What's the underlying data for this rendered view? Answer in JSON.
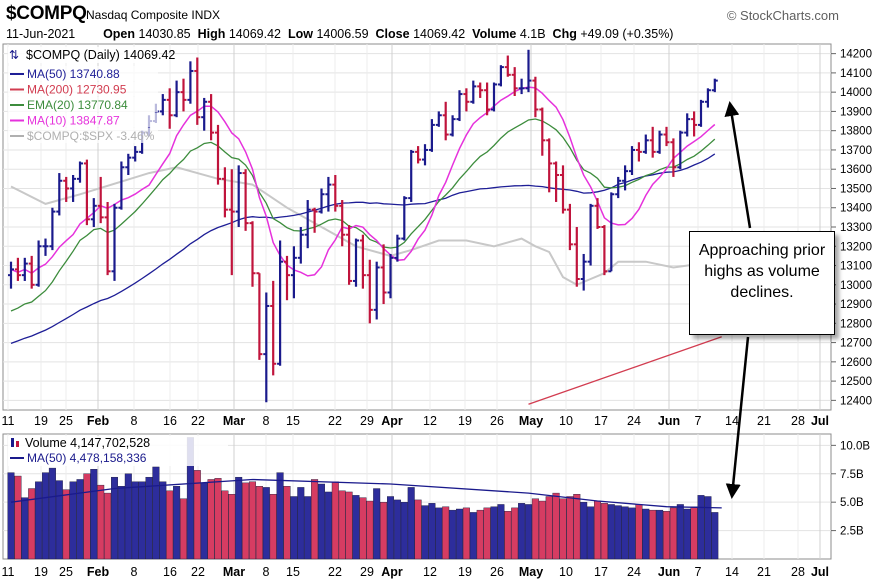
{
  "header": {
    "symbol": "$COMPQ",
    "name": "Nasdaq Composite INDX",
    "brand": "© StockCharts.com",
    "date": "11-Jun-2021",
    "open_label": "Open",
    "open": "14030.85",
    "high_label": "High",
    "high": "14069.42",
    "low_label": "Low",
    "low": "14006.59",
    "close_label": "Close",
    "close": "14069.42",
    "volume_label": "Volume",
    "volume": "4.1B",
    "chg_label": "Chg",
    "chg": "+49.09 (+0.35%)"
  },
  "colors": {
    "up": "#1a1a8c",
    "down": "#c0143c",
    "ma50": "#1e1e96",
    "ma200": "#d23c50",
    "ema20": "#3c8c3c",
    "ma10": "#e632dc",
    "spx": "#c8c8c8"
  },
  "annotation": {
    "text": "Approaching prior highs as volume declines."
  },
  "chart_data": [
    {
      "type": "candlestick",
      "title": "$COMPQ (Daily) 14069.42",
      "ylim": [
        12350,
        14250
      ],
      "y_ticks": [
        12400,
        12500,
        12600,
        12700,
        12800,
        12900,
        13000,
        13100,
        13200,
        13300,
        13400,
        13500,
        13600,
        13700,
        13800,
        13900,
        14000,
        14100,
        14200
      ],
      "x_ticks": [
        "11",
        "19",
        "25",
        "Feb",
        "8",
        "16",
        "22",
        "Mar",
        "8",
        "15",
        "22",
        "29",
        "Apr",
        "12",
        "19",
        "26",
        "May",
        "10",
        "17",
        "24",
        "Jun",
        "7",
        "14",
        "21",
        "28",
        "Jul"
      ],
      "grid": true,
      "legend": "top-left",
      "legend_entries": [
        "MA(50) 13740.88",
        "MA(200) 12730.95",
        "EMA(20) 13770.84",
        "MA(10) 13847.87",
        "$COMPQ:$SPX -3.46%"
      ],
      "ohlc": [
        [
          13050,
          13120,
          12980,
          13080
        ],
        [
          13080,
          13140,
          13020,
          13050
        ],
        [
          13050,
          13140,
          13020,
          13110
        ],
        [
          13110,
          13150,
          12980,
          13000
        ],
        [
          13000,
          13230,
          12990,
          13200
        ],
        [
          13200,
          13240,
          13150,
          13200
        ],
        [
          13200,
          13400,
          13180,
          13380
        ],
        [
          13380,
          13580,
          13360,
          13540
        ],
        [
          13540,
          13560,
          13430,
          13500
        ],
        [
          13500,
          13570,
          13430,
          13550
        ],
        [
          13550,
          13640,
          13530,
          13630
        ],
        [
          13630,
          13650,
          13310,
          13340
        ],
        [
          13340,
          13450,
          13300,
          13410
        ],
        [
          13410,
          13560,
          13320,
          13350
        ],
        [
          13350,
          13430,
          13050,
          13070
        ],
        [
          13070,
          13420,
          13020,
          13400
        ],
        [
          13400,
          13640,
          13390,
          13610
        ],
        [
          13610,
          13680,
          13570,
          13660
        ],
        [
          13660,
          13720,
          13640,
          13690
        ],
        [
          13690,
          13800,
          13680,
          13790
        ],
        [
          13790,
          13880,
          13770,
          13850
        ],
        [
          13850,
          13940,
          13840,
          13900
        ],
        [
          13900,
          13990,
          13880,
          13960
        ],
        [
          13960,
          14020,
          13810,
          13880
        ],
        [
          13880,
          14060,
          13870,
          14000
        ],
        [
          14000,
          14070,
          13900,
          13960
        ],
        [
          13960,
          14160,
          13940,
          14110
        ],
        [
          14110,
          14180,
          13830,
          13870
        ],
        [
          13870,
          13970,
          13800,
          13950
        ],
        [
          13950,
          13990,
          13750,
          13790
        ],
        [
          13790,
          13830,
          13520,
          13550
        ],
        [
          13550,
          13610,
          13350,
          13390
        ],
        [
          13390,
          13600,
          13050,
          13380
        ],
        [
          13380,
          13620,
          13300,
          13580
        ],
        [
          13580,
          13600,
          13280,
          13320
        ],
        [
          13320,
          13330,
          12990,
          13060
        ],
        [
          13060,
          13060,
          12610,
          12640
        ],
        [
          12640,
          12960,
          12390,
          12890
        ],
        [
          12890,
          13020,
          12530,
          12590
        ],
        [
          12590,
          13230,
          12580,
          13120
        ],
        [
          13120,
          13150,
          12920,
          13050
        ],
        [
          13050,
          13200,
          12930,
          13140
        ],
        [
          13140,
          13300,
          13110,
          13260
        ],
        [
          13260,
          13440,
          13190,
          13390
        ],
        [
          13390,
          13400,
          13270,
          13380
        ],
        [
          13380,
          13500,
          13370,
          13470
        ],
        [
          13470,
          13560,
          13380,
          13520
        ],
        [
          13520,
          13570,
          13380,
          13410
        ],
        [
          13410,
          13440,
          13200,
          13260
        ],
        [
          13260,
          13310,
          13000,
          13020
        ],
        [
          13020,
          13240,
          12990,
          13230
        ],
        [
          13230,
          13260,
          12980,
          13050
        ],
        [
          13050,
          13130,
          12800,
          12870
        ],
        [
          12870,
          13120,
          12820,
          13090
        ],
        [
          13090,
          13210,
          12900,
          12960
        ],
        [
          12960,
          13160,
          12930,
          13140
        ],
        [
          13140,
          13260,
          13120,
          13240
        ],
        [
          13240,
          13460,
          13230,
          13450
        ],
        [
          13450,
          13700,
          13430,
          13690
        ],
        [
          13690,
          13720,
          13630,
          13650
        ],
        [
          13650,
          13730,
          13620,
          13700
        ],
        [
          13700,
          13860,
          13690,
          13830
        ],
        [
          13830,
          13900,
          13820,
          13880
        ],
        [
          13880,
          13950,
          13750,
          13780
        ],
        [
          13780,
          13880,
          13770,
          13860
        ],
        [
          13860,
          14010,
          13850,
          13990
        ],
        [
          13990,
          14020,
          13900,
          13950
        ],
        [
          13950,
          14060,
          13940,
          14030
        ],
        [
          14030,
          14050,
          13970,
          14010
        ],
        [
          14010,
          14050,
          13880,
          13910
        ],
        [
          13910,
          14050,
          13900,
          14040
        ],
        [
          14040,
          14140,
          14030,
          14130
        ],
        [
          14130,
          14190,
          14080,
          14090
        ],
        [
          14090,
          14130,
          13980,
          14020
        ],
        [
          14020,
          14070,
          13990,
          14020
        ],
        [
          14020,
          14220,
          14000,
          14060
        ],
        [
          14060,
          14080,
          13870,
          13910
        ],
        [
          13910,
          13920,
          13670,
          13750
        ],
        [
          13750,
          13760,
          13480,
          13630
        ],
        [
          13630,
          13640,
          13430,
          13570
        ],
        [
          13570,
          13620,
          13370,
          13390
        ],
        [
          13390,
          13420,
          13180,
          13210
        ],
        [
          13210,
          13300,
          12990,
          13030
        ],
        [
          13030,
          13160,
          12970,
          13120
        ],
        [
          13120,
          13420,
          13100,
          13410
        ],
        [
          13410,
          13450,
          13290,
          13300
        ],
        [
          13300,
          13310,
          13050,
          13070
        ],
        [
          13070,
          13480,
          13070,
          13470
        ],
        [
          13470,
          13560,
          13450,
          13540
        ],
        [
          13540,
          13620,
          13490,
          13590
        ],
        [
          13590,
          13720,
          13570,
          13700
        ],
        [
          13700,
          13740,
          13640,
          13690
        ],
        [
          13690,
          13780,
          13680,
          13750
        ],
        [
          13750,
          13820,
          13660,
          13690
        ],
        [
          13690,
          13800,
          13680,
          13780
        ],
        [
          13780,
          13820,
          13720,
          13740
        ],
        [
          13740,
          13760,
          13560,
          13610
        ],
        [
          13610,
          13800,
          13600,
          13790
        ],
        [
          13790,
          13890,
          13770,
          13860
        ],
        [
          13860,
          13900,
          13770,
          13830
        ],
        [
          13830,
          13960,
          13820,
          13950
        ],
        [
          13950,
          14020,
          13920,
          14010
        ],
        [
          14010,
          14070,
          14000,
          14060
        ]
      ],
      "ma200": {
        "x": [
          75,
          103
        ],
        "y": [
          12380,
          12730
        ]
      },
      "relative_spx_raw": [
        [
          0,
          13510
        ],
        [
          5,
          13420
        ],
        [
          10,
          13470
        ],
        [
          20,
          13580
        ],
        [
          24,
          13610
        ],
        [
          30,
          13550
        ],
        [
          35,
          13520
        ],
        [
          40,
          13400
        ],
        [
          45,
          13300
        ],
        [
          50,
          13200
        ],
        [
          55,
          13150
        ],
        [
          58,
          13180
        ],
        [
          62,
          13230
        ],
        [
          66,
          13230
        ],
        [
          70,
          13200
        ],
        [
          74,
          13240
        ],
        [
          76,
          13200
        ],
        [
          78,
          13170
        ],
        [
          80,
          13040
        ],
        [
          82,
          13000
        ],
        [
          84,
          13030
        ],
        [
          86,
          13060
        ],
        [
          88,
          13120
        ],
        [
          92,
          13120
        ],
        [
          96,
          13090
        ],
        [
          100,
          13110
        ],
        [
          103,
          13090
        ]
      ]
    },
    {
      "type": "bar",
      "title": "Volume 4,147,702,528",
      "ylim": [
        0,
        11000000000
      ],
      "y_ticks": [
        "2.5B",
        "5.0B",
        "7.5B",
        "10.0B"
      ],
      "y_tick_values": [
        2500000000,
        5000000000,
        7500000000,
        10000000000
      ],
      "legend_entries": [
        "MA(50) 4,478,158,336"
      ],
      "volume_billions": [
        7.6,
        7.3,
        5.4,
        6.2,
        6.8,
        7.6,
        8.0,
        6.9,
        6.1,
        6.8,
        7.0,
        7.5,
        7.9,
        6.5,
        5.8,
        7.2,
        6.4,
        7.5,
        6.8,
        6.8,
        7.2,
        8.1,
        6.8,
        6.0,
        6.4,
        5.3,
        10.7,
        7.8,
        6.7,
        7.0,
        7.1,
        6.0,
        5.7,
        7.2,
        6.7,
        6.8,
        6.4,
        6.3,
        5.7,
        7.6,
        6.4,
        5.5,
        6.3,
        5.5,
        7.0,
        6.6,
        5.9,
        6.8,
        6.0,
        5.9,
        5.6,
        5.4,
        5.1,
        6.2,
        5.0,
        5.5,
        5.2,
        5.0,
        6.3,
        5.2,
        4.7,
        4.9,
        4.5,
        4.6,
        4.3,
        4.4,
        4.5,
        4.1,
        4.3,
        4.5,
        4.6,
        4.8,
        4.2,
        4.5,
        4.9,
        4.8,
        5.3,
        5.1,
        5.5,
        5.8,
        5.3,
        5.5,
        5.7,
        5.0,
        4.6,
        5.1,
        4.9,
        4.8,
        4.7,
        4.6,
        4.5,
        4.8,
        4.4,
        4.3,
        4.3,
        4.2,
        4.5,
        4.8,
        4.4,
        4.6,
        5.6,
        5.5,
        4.1
      ],
      "volume_ma50_billions": {
        "x": [
          0,
          15,
          35,
          55,
          75,
          85,
          95,
          103
        ],
        "y": [
          5.0,
          6.2,
          7.0,
          6.6,
          5.8,
          5.1,
          4.6,
          4.5
        ]
      }
    }
  ]
}
